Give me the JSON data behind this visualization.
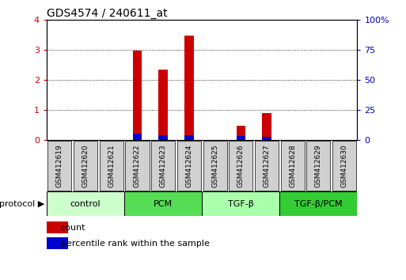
{
  "title": "GDS4574 / 240611_at",
  "samples": [
    "GSM412619",
    "GSM412620",
    "GSM412621",
    "GSM412622",
    "GSM412623",
    "GSM412624",
    "GSM412625",
    "GSM412626",
    "GSM412627",
    "GSM412628",
    "GSM412629",
    "GSM412630"
  ],
  "count_values": [
    0,
    0,
    0,
    2.97,
    2.35,
    3.47,
    0,
    0.47,
    0.9,
    0,
    0,
    0
  ],
  "percentile_values": [
    0,
    0,
    0,
    0.22,
    0.15,
    0.17,
    0,
    0.12,
    0.1,
    0,
    0,
    0
  ],
  "left_ylim": [
    0,
    4
  ],
  "right_ylim": [
    0,
    100
  ],
  "left_yticks": [
    0,
    1,
    2,
    3,
    4
  ],
  "right_yticks": [
    0,
    25,
    50,
    75,
    100
  ],
  "right_yticklabels": [
    "0",
    "25",
    "50",
    "75",
    "100%"
  ],
  "bar_color": "#cc0000",
  "percentile_color": "#0000cc",
  "grid_color": "#000000",
  "background_color": "#ffffff",
  "tick_label_color_left": "#cc0000",
  "tick_label_color_right": "#0000cc",
  "sample_box_color": "#d0d0d0",
  "protocol_groups": [
    {
      "label": "control",
      "start": 0,
      "end": 3,
      "color": "#ccffcc"
    },
    {
      "label": "PCM",
      "start": 3,
      "end": 6,
      "color": "#55dd55"
    },
    {
      "label": "TGF-β",
      "start": 6,
      "end": 9,
      "color": "#aaffaa"
    },
    {
      "label": "TGF-β/PCM",
      "start": 9,
      "end": 12,
      "color": "#33cc33"
    }
  ],
  "protocol_label": "protocol",
  "legend_count_label": "count",
  "legend_percentile_label": "percentile rank within the sample",
  "bar_width": 0.35
}
